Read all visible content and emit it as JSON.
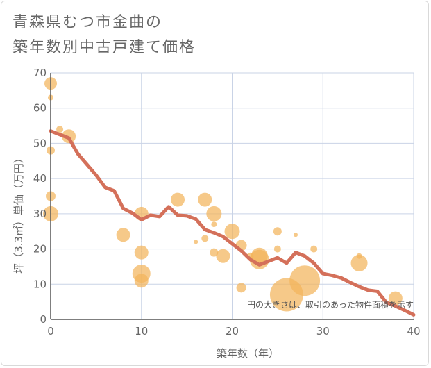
{
  "chart_data": {
    "type": "scatter",
    "title_line1": "青森県むつ市金曲の",
    "title_line2": "築年数別中古戸建て価格",
    "xlabel": "築年数（年）",
    "ylabel": "坪（3.3㎡）単価（万円）",
    "note": "円の大きさは、取引のあった物件面積を示す",
    "xlim": [
      0,
      40
    ],
    "ylim": [
      0,
      70
    ],
    "x_ticks": [
      0,
      10,
      20,
      30,
      40
    ],
    "y_ticks": [
      0,
      10,
      20,
      30,
      40,
      50,
      60,
      70
    ],
    "grid": true,
    "colors": {
      "bubble": "#f2b45c",
      "trend": "#d4705a",
      "grid": "#c9d3e6",
      "axis": "#555555"
    },
    "bubbles": [
      {
        "x": 0,
        "y": 67,
        "r": 9
      },
      {
        "x": 0,
        "y": 63,
        "r": 4
      },
      {
        "x": 0,
        "y": 48,
        "r": 6
      },
      {
        "x": 0,
        "y": 35,
        "r": 7
      },
      {
        "x": 0,
        "y": 30,
        "r": 11
      },
      {
        "x": 1,
        "y": 54,
        "r": 5
      },
      {
        "x": 2,
        "y": 52,
        "r": 10
      },
      {
        "x": 8,
        "y": 24,
        "r": 10
      },
      {
        "x": 10,
        "y": 30,
        "r": 10
      },
      {
        "x": 10,
        "y": 19,
        "r": 10
      },
      {
        "x": 10,
        "y": 13,
        "r": 13
      },
      {
        "x": 10,
        "y": 11,
        "r": 10
      },
      {
        "x": 14,
        "y": 34,
        "r": 10
      },
      {
        "x": 16,
        "y": 22,
        "r": 3
      },
      {
        "x": 17,
        "y": 34,
        "r": 10
      },
      {
        "x": 17,
        "y": 23,
        "r": 5
      },
      {
        "x": 18,
        "y": 30,
        "r": 11
      },
      {
        "x": 18,
        "y": 27,
        "r": 4
      },
      {
        "x": 18,
        "y": 19,
        "r": 6
      },
      {
        "x": 19,
        "y": 18,
        "r": 10
      },
      {
        "x": 20,
        "y": 25,
        "r": 11
      },
      {
        "x": 21,
        "y": 21,
        "r": 8
      },
      {
        "x": 21,
        "y": 9,
        "r": 7
      },
      {
        "x": 22,
        "y": 18,
        "r": 5
      },
      {
        "x": 23,
        "y": 18,
        "r": 12
      },
      {
        "x": 23,
        "y": 17,
        "r": 14
      },
      {
        "x": 25,
        "y": 25,
        "r": 6
      },
      {
        "x": 25,
        "y": 20,
        "r": 5
      },
      {
        "x": 26,
        "y": 7,
        "r": 24
      },
      {
        "x": 27,
        "y": 24,
        "r": 3
      },
      {
        "x": 28,
        "y": 11,
        "r": 22
      },
      {
        "x": 29,
        "y": 20,
        "r": 5
      },
      {
        "x": 34,
        "y": 18,
        "r": 4
      },
      {
        "x": 34,
        "y": 16,
        "r": 12
      },
      {
        "x": 38,
        "y": 6,
        "r": 10
      }
    ],
    "trend": {
      "x": [
        0,
        1,
        2,
        3,
        4,
        5,
        6,
        7,
        8,
        9,
        10,
        11,
        12,
        13,
        14,
        15,
        16,
        17,
        18,
        19,
        20,
        21,
        22,
        23,
        24,
        25,
        26,
        27,
        28,
        29,
        30,
        31,
        32,
        33,
        34,
        35,
        36,
        37,
        38,
        39,
        40
      ],
      "y": [
        53.5,
        52.5,
        51.5,
        47,
        44,
        41,
        37.5,
        36.5,
        31.5,
        30.2,
        28.3,
        29.6,
        29.2,
        32,
        29.6,
        29.4,
        28.5,
        25.5,
        24.6,
        23.5,
        21.5,
        19.5,
        17,
        15.5,
        16.5,
        17.5,
        16,
        19,
        18,
        16,
        13,
        12.5,
        11.8,
        10.5,
        9.3,
        8.3,
        8,
        4.8,
        3.8,
        2.6,
        1.3
      ]
    }
  }
}
